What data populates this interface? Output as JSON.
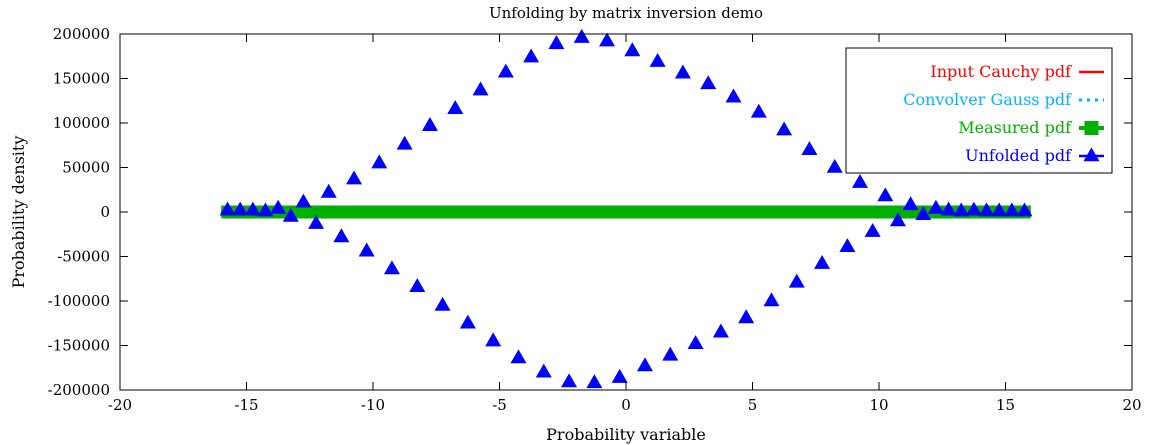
{
  "chart_data": {
    "type": "scatter",
    "title": "Unfolding by matrix inversion demo",
    "xlabel": "Probability variable",
    "ylabel": "Probability density",
    "xlim": [
      -20,
      20
    ],
    "ylim": [
      -200000,
      200000
    ],
    "xticks": [
      -20,
      -15,
      -10,
      -5,
      0,
      5,
      10,
      15,
      20
    ],
    "yticks": [
      -200000,
      -150000,
      -100000,
      -50000,
      0,
      50000,
      100000,
      150000,
      200000
    ],
    "grid": false,
    "legend_position": "top-right",
    "series": [
      {
        "name": "Input Cauchy pdf",
        "style": "solid-line",
        "color": "#ff0000",
        "x": [
          -16,
          16
        ],
        "y": [
          0,
          0
        ]
      },
      {
        "name": "Convolver Gauss pdf",
        "style": "dotted-line",
        "color": "#00b4ff",
        "x": [
          -16,
          16
        ],
        "y": [
          0,
          0
        ]
      },
      {
        "name": "Measured pdf",
        "style": "thick-band-square",
        "color": "#00b000",
        "x": [
          -16,
          16
        ],
        "y": [
          0,
          0
        ]
      },
      {
        "name": "Unfolded pdf",
        "style": "triangle-markers",
        "color": "#0000ff",
        "x": [
          -15.75,
          -15.25,
          -14.75,
          -14.25,
          -13.75,
          -13.25,
          -12.75,
          -12.25,
          -11.75,
          -11.25,
          -10.75,
          -10.25,
          -9.75,
          -9.25,
          -8.75,
          -8.25,
          -7.75,
          -7.25,
          -6.75,
          -6.25,
          -5.75,
          -5.25,
          -4.75,
          -4.25,
          -3.75,
          -3.25,
          -2.75,
          -2.25,
          -1.75,
          -1.25,
          -0.75,
          -0.25,
          0.25,
          0.75,
          1.25,
          1.75,
          2.25,
          2.75,
          3.25,
          3.75,
          4.25,
          4.75,
          5.25,
          5.75,
          6.25,
          6.75,
          7.25,
          7.75,
          8.25,
          8.75,
          9.25,
          9.75,
          10.25,
          10.75,
          11.25,
          11.75,
          12.25,
          12.75,
          13.25,
          13.75,
          14.25,
          14.75,
          15.25,
          15.75
        ],
        "y": [
          2000,
          2000,
          2000,
          1000,
          4000,
          -5000,
          11000,
          -13000,
          22000,
          -28000,
          37000,
          -44000,
          55000,
          -64000,
          76000,
          -84000,
          97000,
          -105000,
          116000,
          -125000,
          137000,
          -145000,
          157000,
          -164000,
          174000,
          -180000,
          189000,
          -191000,
          196000,
          -192000,
          192000,
          -186000,
          181000,
          -173000,
          169000,
          -161000,
          156000,
          -148000,
          144000,
          -135000,
          129000,
          -119000,
          112000,
          -100000,
          92000,
          -79000,
          70000,
          -58000,
          50000,
          -39000,
          33000,
          -22000,
          18000,
          -10000,
          8000,
          -3000,
          4000,
          2000,
          1000,
          2000,
          1000,
          1000,
          1000,
          1000
        ]
      }
    ]
  }
}
